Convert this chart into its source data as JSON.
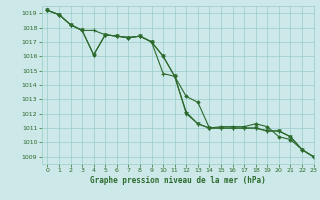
{
  "title": "Graphe pression niveau de la mer (hPa)",
  "xlim": [
    -0.5,
    23
  ],
  "ylim": [
    1008.5,
    1019.5
  ],
  "yticks": [
    1009,
    1010,
    1011,
    1012,
    1013,
    1014,
    1015,
    1016,
    1017,
    1018,
    1019
  ],
  "xticks": [
    0,
    1,
    2,
    3,
    4,
    5,
    6,
    7,
    8,
    9,
    10,
    11,
    12,
    13,
    14,
    15,
    16,
    17,
    18,
    19,
    20,
    21,
    22,
    23
  ],
  "bg_color": "#cce8e8",
  "grid_color": "#99cccc",
  "line_color": "#2d6a2d",
  "line1_x": [
    0,
    1,
    2,
    3,
    4,
    5,
    6,
    7,
    8,
    9,
    10,
    11,
    12,
    13,
    14,
    15,
    16,
    17,
    18,
    19,
    20,
    21,
    22,
    23
  ],
  "line1_y": [
    1019.2,
    1018.9,
    1018.2,
    1017.8,
    1016.1,
    1017.5,
    1017.4,
    1017.3,
    1017.4,
    1017.0,
    1016.0,
    1014.6,
    1012.0,
    1011.3,
    1011.0,
    1011.0,
    1011.0,
    1011.0,
    1011.0,
    1010.8,
    1010.8,
    1010.4,
    1009.5,
    1009.0
  ],
  "line2_x": [
    0,
    1,
    2,
    3,
    4,
    5,
    6,
    7,
    8,
    9,
    10,
    11,
    12,
    13,
    14,
    15,
    16,
    17,
    18,
    19,
    20,
    21,
    22,
    23
  ],
  "line2_y": [
    1019.2,
    1018.9,
    1018.2,
    1017.8,
    1017.8,
    1017.5,
    1017.4,
    1017.3,
    1017.4,
    1017.0,
    1014.8,
    1014.6,
    1012.1,
    1011.3,
    1011.0,
    1011.0,
    1011.0,
    1011.0,
    1011.0,
    1010.8,
    1010.8,
    1010.4,
    1009.5,
    1009.0
  ],
  "line3_x": [
    0,
    1,
    2,
    3,
    4,
    5,
    6,
    7,
    8,
    9,
    10,
    11,
    12,
    13,
    14,
    15,
    16,
    17,
    18,
    19,
    20,
    21,
    22,
    23
  ],
  "line3_y": [
    1019.2,
    1018.9,
    1018.2,
    1017.8,
    1016.1,
    1017.5,
    1017.4,
    1017.3,
    1017.4,
    1017.0,
    1016.0,
    1014.6,
    1013.2,
    1012.8,
    1011.0,
    1011.1,
    1011.1,
    1011.1,
    1011.3,
    1011.1,
    1010.4,
    1010.2,
    1009.5,
    1009.0
  ]
}
